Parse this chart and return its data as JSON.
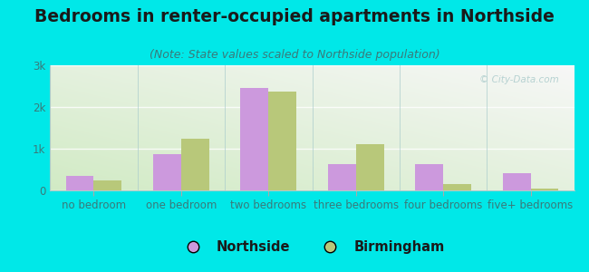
{
  "title": "Bedrooms in renter-occupied apartments in Northside",
  "subtitle": "(Note: State values scaled to Northside population)",
  "categories": [
    "no bedroom",
    "one bedroom",
    "two bedrooms",
    "three bedrooms",
    "four bedrooms",
    "five+ bedrooms"
  ],
  "northside_values": [
    350,
    870,
    2450,
    620,
    640,
    410
  ],
  "birmingham_values": [
    250,
    1230,
    2370,
    1100,
    145,
    45
  ],
  "northside_color": "#cc99dd",
  "birmingham_color": "#b8c87a",
  "background_outer": "#00e8e8",
  "ylim": [
    0,
    3000
  ],
  "yticks": [
    0,
    1000,
    2000,
    3000
  ],
  "ytick_labels": [
    "0",
    "1k",
    "2k",
    "3k"
  ],
  "bar_width": 0.32,
  "title_fontsize": 13.5,
  "subtitle_fontsize": 9,
  "legend_fontsize": 10.5,
  "axis_label_fontsize": 8.5,
  "title_color": "#1a1a1a",
  "subtitle_color": "#3a7a7a",
  "tick_color": "#3a7a7a",
  "watermark_color": "#b0cece"
}
